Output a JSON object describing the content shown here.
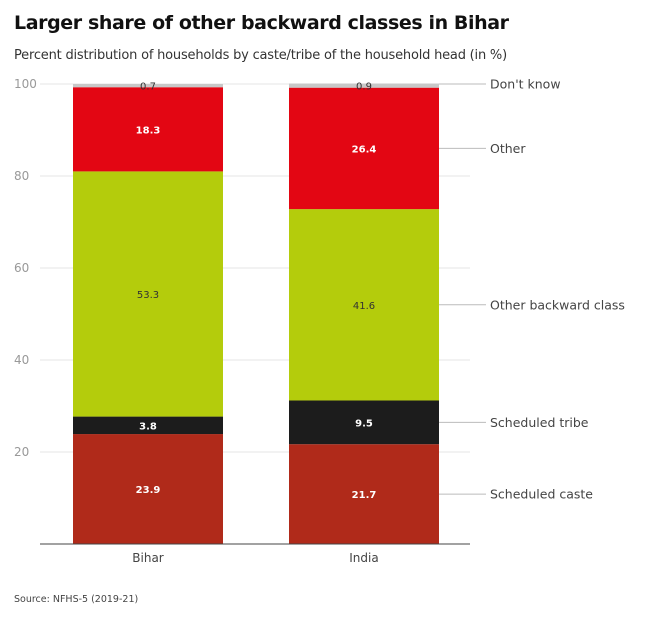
{
  "title": "Larger share of other backward classes in Bihar",
  "subtitle": "Percent distribution of households by caste/tribe of the household head (in %)",
  "source": "Source: NFHS-5 (2019-21)",
  "colors": {
    "Scheduled caste": "#b02a1a",
    "Scheduled tribe": "#1c1c1c",
    "Other backward class": "#b4cc0c",
    "Other": "#e30613",
    "Don't know": "#c8c8c8"
  },
  "chart_data": {
    "type": "bar",
    "stacked": true,
    "categories": [
      "Bihar",
      "India"
    ],
    "series": [
      {
        "name": "Scheduled caste",
        "values": [
          23.9,
          21.7
        ]
      },
      {
        "name": "Scheduled tribe",
        "values": [
          3.8,
          9.5
        ]
      },
      {
        "name": "Other backward class",
        "values": [
          53.3,
          41.6
        ]
      },
      {
        "name": "Other",
        "values": [
          18.3,
          26.4
        ]
      },
      {
        "name": "Don't know",
        "values": [
          0.7,
          0.9
        ]
      }
    ],
    "ylim": [
      0,
      100
    ],
    "yticks": [
      20,
      40,
      60,
      80,
      100
    ],
    "grid": true,
    "legend": "right, labels attached to India bar"
  }
}
